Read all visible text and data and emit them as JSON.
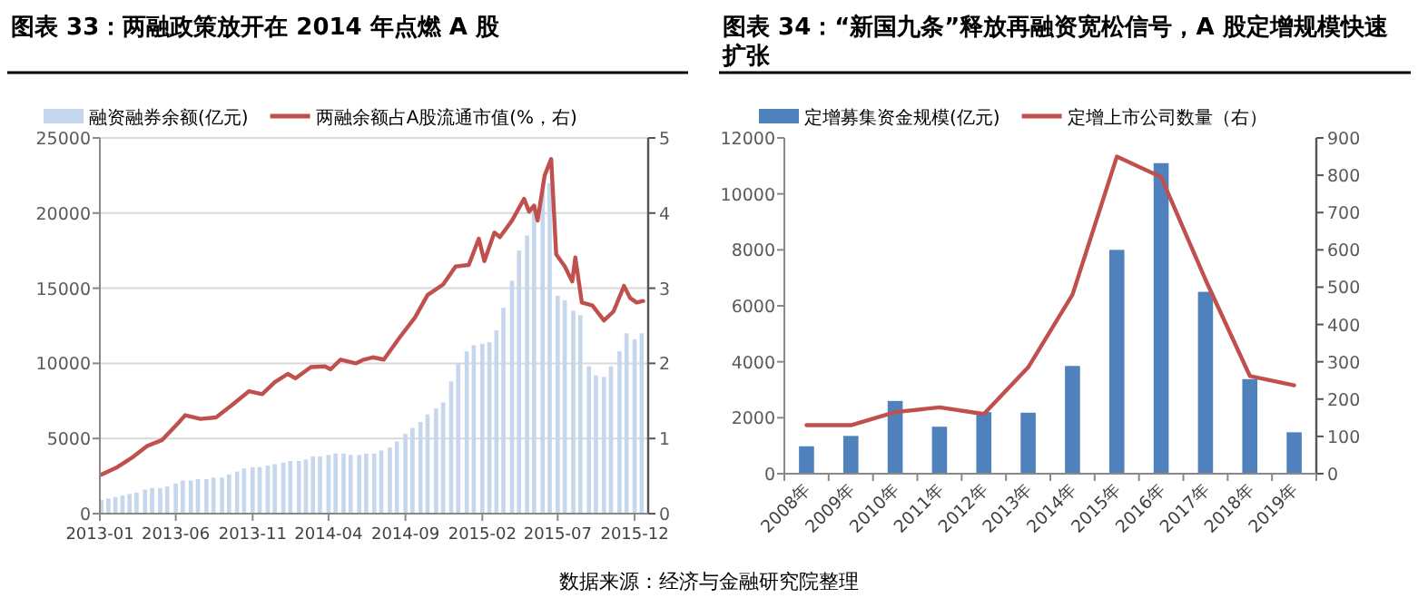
{
  "chart_data": [
    {
      "type": "bar",
      "title": "图表 33：两融政策放开在 2014 年点燃 A 股",
      "legend": "top",
      "grid": "y",
      "x": [
        "2013-01-04",
        "2013-01-18",
        "2013-02-01",
        "2013-02-15",
        "2013-03-01",
        "2013-03-15",
        "2013-04-01",
        "2013-04-15",
        "2013-05-01",
        "2013-05-15",
        "2013-06-01",
        "2013-06-15",
        "2013-07-01",
        "2013-07-15",
        "2013-08-01",
        "2013-08-15",
        "2013-09-01",
        "2013-09-15",
        "2013-10-01",
        "2013-10-15",
        "2013-11-01",
        "2013-11-15",
        "2013-12-01",
        "2013-12-15",
        "2014-01-01",
        "2014-01-15",
        "2014-02-01",
        "2014-02-15",
        "2014-03-01",
        "2014-03-15",
        "2014-04-01",
        "2014-04-15",
        "2014-05-01",
        "2014-05-15",
        "2014-06-01",
        "2014-06-15",
        "2014-07-01",
        "2014-07-15",
        "2014-08-01",
        "2014-08-15",
        "2014-09-01",
        "2014-09-15",
        "2014-10-01",
        "2014-10-15",
        "2014-11-01",
        "2014-11-15",
        "2014-12-01",
        "2014-12-15",
        "2015-01-01",
        "2015-01-15",
        "2015-02-01",
        "2015-02-15",
        "2015-03-01",
        "2015-03-15",
        "2015-04-01",
        "2015-04-15",
        "2015-05-01",
        "2015-05-15",
        "2015-06-01",
        "2015-06-15",
        "2015-07-01",
        "2015-07-15",
        "2015-08-01",
        "2015-08-15",
        "2015-09-01",
        "2015-09-15",
        "2015-10-01",
        "2015-10-15",
        "2015-11-01",
        "2015-11-15",
        "2015-12-01",
        "2015-12-15"
      ],
      "xlim": [
        "2013-01-01",
        "2015-12-28"
      ],
      "xticks": [
        {
          "value": "2013-01-01",
          "label": "2013-01"
        },
        {
          "value": "2013-06-01",
          "label": "2013-06"
        },
        {
          "value": "2013-11-01",
          "label": "2013-11"
        },
        {
          "value": "2014-04-01",
          "label": "2014-04"
        },
        {
          "value": "2014-09-01",
          "label": "2014-09"
        },
        {
          "value": "2015-02-01",
          "label": "2015-02"
        },
        {
          "value": "2015-07-01",
          "label": "2015-07"
        },
        {
          "value": "2015-12-01",
          "label": "2015-12"
        }
      ],
      "ylim": [
        0,
        25000
      ],
      "yticks": [
        0,
        5000,
        10000,
        15000,
        20000,
        25000
      ],
      "y2lim": [
        0,
        5
      ],
      "y2ticks": [
        0,
        1,
        2,
        3,
        4,
        5
      ],
      "series": [
        {
          "name": "融资融券余额(亿元)",
          "color": "#c6d6ec",
          "values": [
            900,
            1000,
            1100,
            1200,
            1300,
            1400,
            1600,
            1700,
            1700,
            1800,
            2000,
            2200,
            2200,
            2300,
            2300,
            2400,
            2400,
            2600,
            2800,
            3000,
            3100,
            3100,
            3200,
            3300,
            3400,
            3500,
            3500,
            3600,
            3800,
            3800,
            3900,
            4000,
            4000,
            3900,
            3900,
            4000,
            4000,
            4200,
            4400,
            4800,
            5300,
            5700,
            6100,
            6600,
            7000,
            7400,
            8800,
            10000,
            10800,
            11200,
            11300,
            11400,
            12200,
            13700,
            15500,
            17500,
            18500,
            20500,
            21500,
            22000,
            14500,
            14200,
            13500,
            13200,
            9800,
            9200,
            9100,
            9800,
            10800,
            12000,
            11600,
            12000
          ]
        },
        {
          "name": "两融余额占A股流通市值(%，右)",
          "type": "line",
          "axis": "y2",
          "color": "#c0504d",
          "x": [
            "2013-01-04",
            "2013-02-05",
            "2013-03-05",
            "2013-04-05",
            "2013-05-05",
            "2013-06-05",
            "2013-06-20",
            "2013-07-20",
            "2013-08-20",
            "2013-09-20",
            "2013-10-25",
            "2013-11-20",
            "2013-12-15",
            "2014-01-10",
            "2014-01-25",
            "2014-02-25",
            "2014-03-25",
            "2014-04-05",
            "2014-04-25",
            "2014-05-25",
            "2014-06-10",
            "2014-06-28",
            "2014-07-20",
            "2014-08-20",
            "2014-09-20",
            "2014-10-15",
            "2014-11-15",
            "2014-12-10",
            "2015-01-05",
            "2015-01-25",
            "2015-02-05",
            "2015-02-25",
            "2015-03-08",
            "2015-04-01",
            "2015-04-25",
            "2015-05-05",
            "2015-05-15",
            "2015-05-22",
            "2015-06-05",
            "2015-06-18",
            "2015-06-28",
            "2015-07-15",
            "2015-07-30",
            "2015-08-05",
            "2015-08-18",
            "2015-09-08",
            "2015-10-01",
            "2015-10-20",
            "2015-11-10",
            "2015-11-22",
            "2015-12-05",
            "2015-12-18"
          ],
          "values": [
            0.52,
            0.62,
            0.74,
            0.9,
            0.98,
            1.2,
            1.31,
            1.26,
            1.28,
            1.44,
            1.63,
            1.59,
            1.75,
            1.86,
            1.8,
            1.95,
            1.96,
            1.92,
            2.05,
            2.0,
            2.05,
            2.08,
            2.05,
            2.34,
            2.61,
            2.91,
            3.05,
            3.29,
            3.31,
            3.66,
            3.36,
            3.74,
            3.68,
            3.9,
            4.19,
            4.02,
            4.1,
            3.9,
            4.5,
            4.72,
            3.45,
            3.29,
            3.09,
            3.41,
            2.81,
            2.77,
            2.57,
            2.69,
            3.03,
            2.87,
            2.81,
            2.83
          ]
        }
      ]
    },
    {
      "type": "bar",
      "title": "图表 34：“新国九条”释放再融资宽松信号，A 股定增规模快速扩张",
      "legend": "top",
      "categories": [
        "2008年",
        "2009年",
        "2010年",
        "2011年",
        "2012年",
        "2013年",
        "2014年",
        "2015年",
        "2016年",
        "2017年",
        "2018年",
        "2019年"
      ],
      "ylim": [
        0,
        12000
      ],
      "yticks": [
        0,
        2000,
        4000,
        6000,
        8000,
        10000,
        12000
      ],
      "y2lim": [
        0,
        900
      ],
      "y2ticks": [
        0,
        100,
        200,
        300,
        400,
        500,
        600,
        700,
        800,
        900
      ],
      "series": [
        {
          "name": "定增募集资金规模(亿元)",
          "color": "#4f81bd",
          "values": [
            980,
            1350,
            2600,
            1680,
            2200,
            2180,
            3850,
            8000,
            11100,
            6500,
            3380,
            1480
          ]
        },
        {
          "name": "定增上市公司数量（右）",
          "type": "line",
          "axis": "y2",
          "color": "#c0504d",
          "values": [
            130,
            130,
            165,
            178,
            160,
            285,
            480,
            850,
            795,
            520,
            262,
            237
          ]
        }
      ],
      "annotations": [
        "数据来源：经济与金融研究院整理"
      ]
    }
  ]
}
